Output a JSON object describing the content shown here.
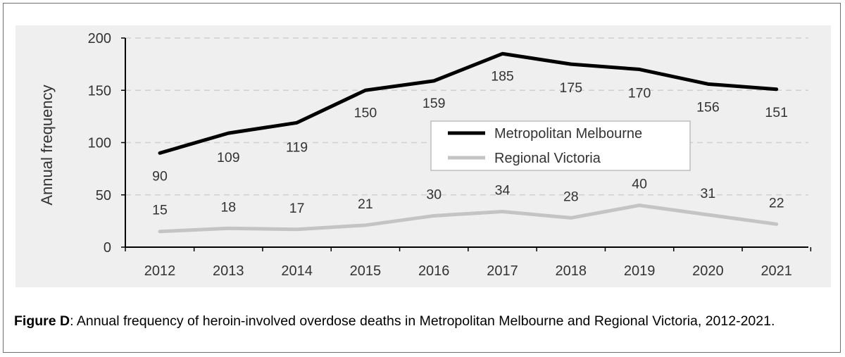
{
  "chart_data": {
    "type": "line",
    "categories": [
      "2012",
      "2013",
      "2014",
      "2015",
      "2016",
      "2017",
      "2018",
      "2019",
      "2020",
      "2021"
    ],
    "series": [
      {
        "name": "Metropolitan Melbourne",
        "values": [
          90,
          109,
          119,
          150,
          159,
          185,
          175,
          170,
          156,
          151
        ],
        "color": "#000000"
      },
      {
        "name": "Regional Victoria",
        "values": [
          15,
          18,
          17,
          21,
          30,
          34,
          28,
          40,
          31,
          22
        ],
        "color": "#c4c4c4"
      }
    ],
    "title": "",
    "xlabel": "",
    "ylabel": "Annual frequency",
    "ylim": [
      0,
      200
    ],
    "yticks": [
      0,
      50,
      100,
      150,
      200
    ],
    "grid": true,
    "legend": "center-right"
  },
  "caption": {
    "label": "Figure D",
    "text": ": Annual frequency of heroin-involved overdose deaths in Metropolitan Melbourne and Regional Victoria, 2012-2021."
  },
  "colors": {
    "plot_background": "#efefef",
    "grid": "#d0d0d0",
    "axis": "#000000",
    "label_text": "#333333"
  }
}
